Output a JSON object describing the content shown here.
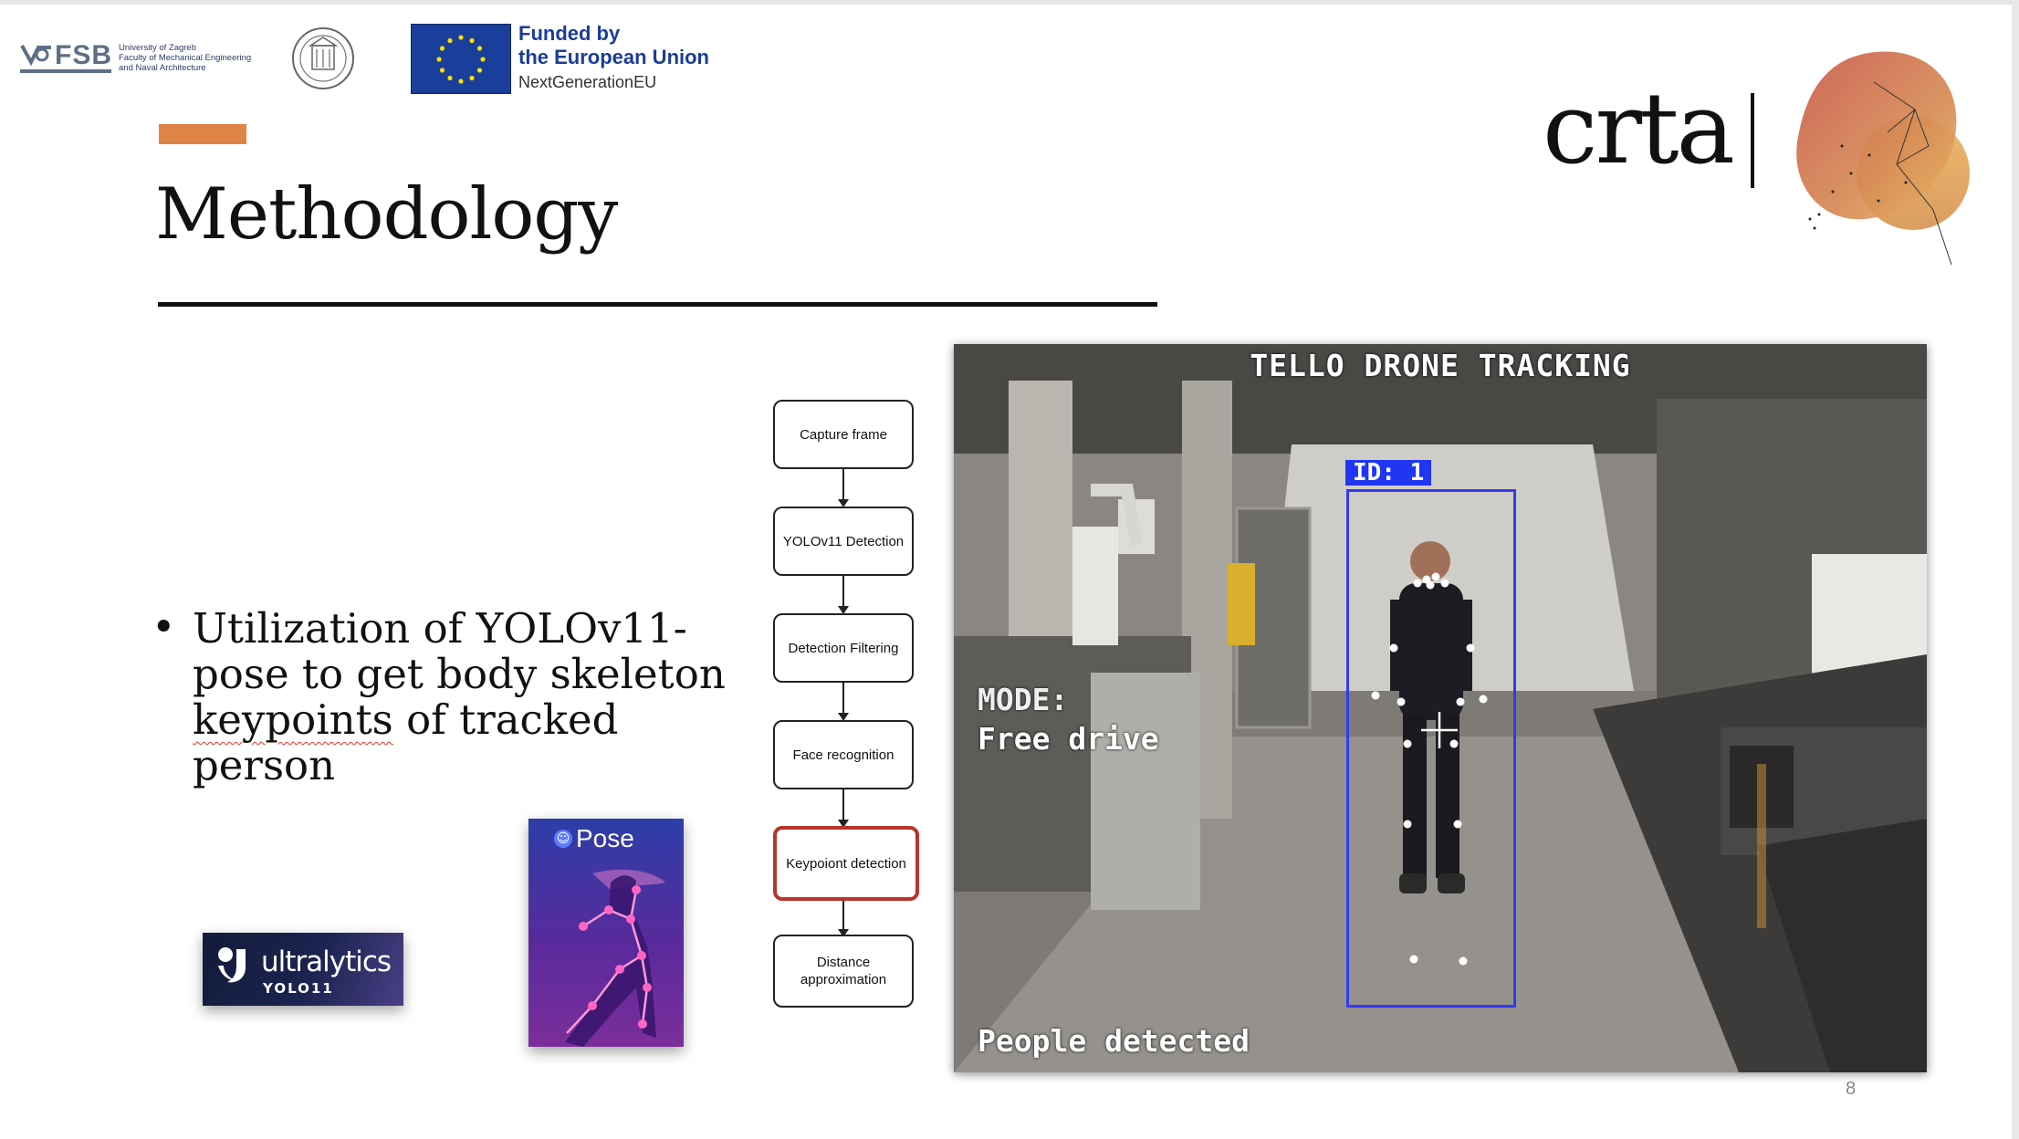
{
  "header": {
    "fsb": {
      "acronym": "FSB",
      "line1": "University of Zagreb",
      "line2": "Faculty of Mechanical Engineering",
      "line3": "and Naval Architecture"
    },
    "eu": {
      "funded": "Funded by",
      "union": "the European Union",
      "next": "NextGenerationEU"
    },
    "crta": "crta"
  },
  "slide": {
    "title": "Methodology",
    "bullet": {
      "part1": "Utilization of YOLOv11-pose to get body skeleton ",
      "underlined": "keypoints",
      "part2": " of tracked person"
    },
    "page_number": "8"
  },
  "ultralytics": {
    "name": "ultralytics",
    "version": "YOLO11"
  },
  "pose_card": {
    "label": "Pose"
  },
  "flowchart": {
    "steps": [
      "Capture frame",
      "YOLOv11 Detection",
      "Detection Filtering",
      "Face recognition",
      "Keypoiont detection",
      "Distance approximation"
    ],
    "highlighted_index": 4,
    "highlight_color": "#b8342c"
  },
  "video": {
    "title": "TELLO DRONE TRACKING",
    "mode_label": "MODE:",
    "mode_value": "Free drive",
    "id_label": "ID: 1",
    "status": "People detected",
    "box_color": "#2f3bf5"
  },
  "colors": {
    "accent": "#df8447",
    "eu_blue": "#1b3d96"
  }
}
